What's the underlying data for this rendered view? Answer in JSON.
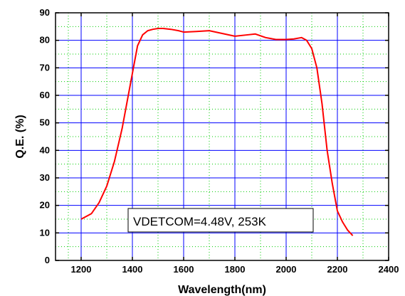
{
  "chart_data": {
    "type": "line",
    "title": "",
    "xlabel": "Wavelength(nm)",
    "ylabel": "Q.E. (%)",
    "xlim": [
      1100,
      2400
    ],
    "ylim": [
      0,
      90
    ],
    "x_ticks": [
      1200,
      1400,
      1600,
      1800,
      2000,
      2200,
      2400
    ],
    "y_ticks": [
      0,
      10,
      20,
      30,
      40,
      50,
      60,
      70,
      80,
      90
    ],
    "grid": "major blue solid, minor green dotted",
    "line_color": "#ff0000",
    "grid_major_color": "#0000ff",
    "grid_minor_color": "#00cc00",
    "annotation": "VDETCOM=4.48V, 253K",
    "series": [
      {
        "x": [
          1200,
          1240,
          1270,
          1300,
          1330,
          1360,
          1380,
          1400,
          1420,
          1440,
          1460,
          1480,
          1500,
          1520,
          1550,
          1580,
          1600,
          1650,
          1700,
          1750,
          1800,
          1850,
          1880,
          1920,
          1960,
          2000,
          2030,
          2060,
          2080,
          2100,
          2120,
          2140,
          2160,
          2180,
          2200,
          2220,
          2240,
          2260
        ],
        "y": [
          15,
          17,
          21,
          27,
          36,
          48,
          58,
          68,
          78,
          82,
          83.5,
          84,
          84.3,
          84.3,
          84,
          83.5,
          83,
          83.2,
          83.5,
          82.5,
          81.5,
          82,
          82.3,
          81,
          80.3,
          80.3,
          80.5,
          81,
          80,
          77,
          70,
          57,
          40,
          28,
          18,
          14,
          11,
          9
        ]
      }
    ]
  }
}
